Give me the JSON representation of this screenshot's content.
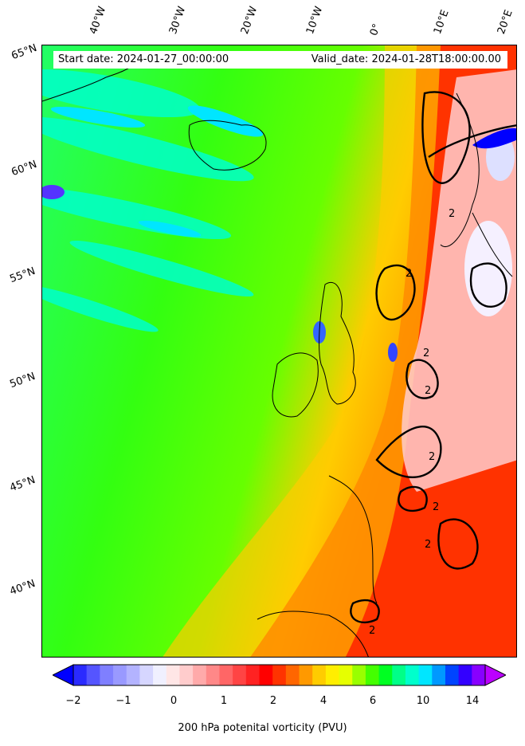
{
  "header": {
    "start_date": "Start date: 2024-01-27_00:00:00",
    "valid_date": "Valid_date: 2024-01-28T18:00:00.00"
  },
  "longitude_labels": [
    "40°W",
    "30°W",
    "20°W",
    "10°W",
    "0°",
    "10°E",
    "20°E"
  ],
  "latitude_labels": [
    "65°N",
    "60°N",
    "55°N",
    "50°N",
    "45°N",
    "40°N"
  ],
  "contour_label": "2",
  "colorbar": {
    "label": "200 hPa potenital vorticity (PVU)",
    "ticks": [
      "−2",
      "−1",
      "0",
      "1",
      "2",
      "4",
      "6",
      "10",
      "14"
    ],
    "colors": [
      "#0000ff",
      "#2a2aff",
      "#5555ff",
      "#7f7fff",
      "#9999ff",
      "#b3b3ff",
      "#d6d6ff",
      "#f0f0ff",
      "#ffe6e6",
      "#ffcccc",
      "#ffaaaa",
      "#ff8888",
      "#ff6666",
      "#ff4444",
      "#ff2222",
      "#ff0000",
      "#ff3300",
      "#ff6600",
      "#ff9900",
      "#ffcc00",
      "#ffee00",
      "#e6ff00",
      "#99ff00",
      "#44ff00",
      "#00ff22",
      "#00ff88",
      "#00ffcc",
      "#00e6ff",
      "#0099ff",
      "#0044ff",
      "#3300ff",
      "#8800ff",
      "#bb00ff"
    ]
  }
}
